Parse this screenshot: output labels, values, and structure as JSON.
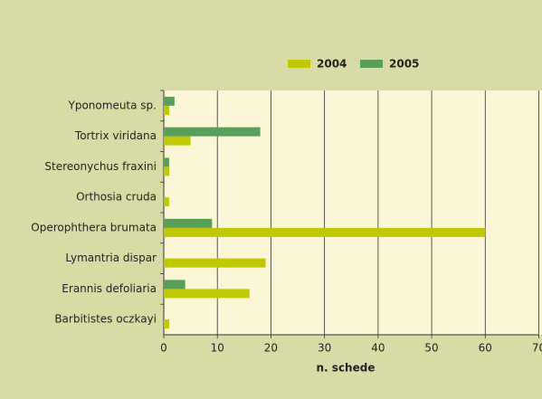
{
  "chart_data": {
    "type": "barh",
    "categories": [
      "Yponomeuta sp.",
      "Tortrix viridana",
      "Stereonychus fraxini",
      "Orthosia cruda",
      "Operophthera brumata",
      "Lymantria dispar",
      "Erannis defoliaria",
      "Barbitistes oczkayi"
    ],
    "series": [
      {
        "name": "2004",
        "color": "#bfc800",
        "values": [
          1,
          5,
          1,
          1,
          60,
          19,
          16,
          1
        ]
      },
      {
        "name": "2005",
        "color": "#58a05a",
        "values": [
          2,
          18,
          1,
          0,
          9,
          0,
          4,
          0
        ]
      }
    ],
    "xlabel": "n. schede",
    "xlim": [
      0,
      70
    ],
    "xticks": [
      0,
      10,
      20,
      30,
      40,
      50,
      60,
      70
    ],
    "grid": true,
    "legend": "top"
  }
}
